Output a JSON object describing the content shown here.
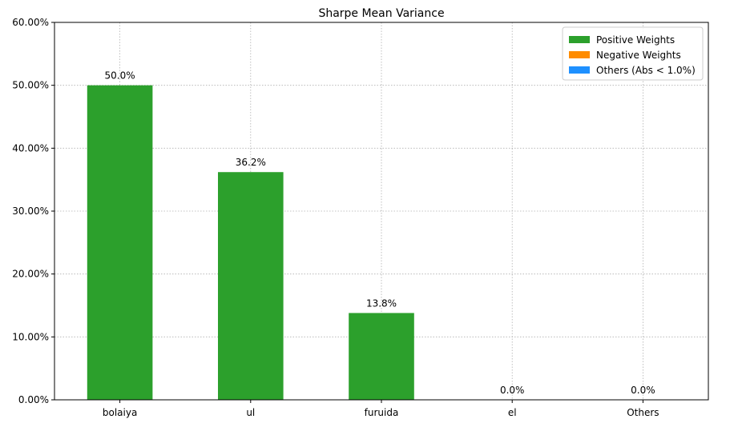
{
  "chart_data": {
    "type": "bar",
    "title": "Sharpe Mean Variance",
    "categories": [
      "bolaiya",
      "ul",
      "furuida",
      "el",
      "Others"
    ],
    "values": [
      50.0,
      36.2,
      13.8,
      0.0,
      0.0
    ],
    "bar_labels": [
      "50.0%",
      "36.2%",
      "13.8%",
      "0.0%",
      "0.0%"
    ],
    "ylim": [
      0,
      60
    ],
    "yticks": [
      0,
      10,
      20,
      30,
      40,
      50,
      60
    ],
    "ytick_labels": [
      "0.00%",
      "10.00%",
      "20.00%",
      "30.00%",
      "40.00%",
      "50.00%",
      "60.00%"
    ],
    "xlabel": "",
    "ylabel": "",
    "grid": true,
    "legend_position": "top-right",
    "legend": [
      {
        "label": "Positive Weights",
        "color": "#2ca02c"
      },
      {
        "label": "Negative Weights",
        "color": "#ff8c00"
      },
      {
        "label": "Others (Abs < 1.0%)",
        "color": "#1e90ff"
      }
    ],
    "bar_color": "#2ca02c"
  }
}
